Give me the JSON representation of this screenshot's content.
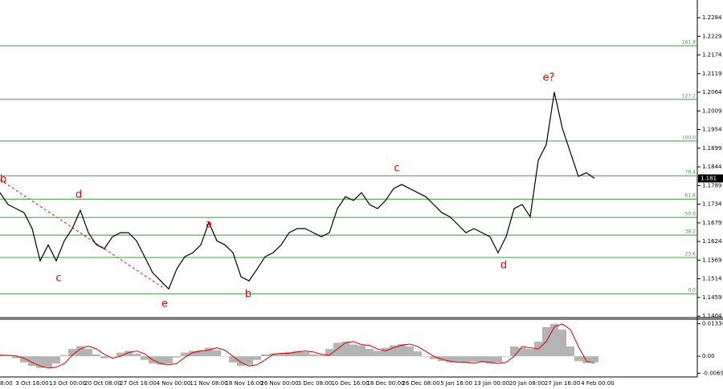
{
  "chart_data": [
    {
      "type": "line",
      "color": "#000000",
      "values": [
        1.1768,
        1.1733,
        1.1721,
        1.1709,
        1.1662,
        1.1567,
        1.1614,
        1.1567,
        1.1626,
        1.1662,
        1.1716,
        1.165,
        1.1614,
        1.1603,
        1.1638,
        1.165,
        1.165,
        1.1626,
        1.1579,
        1.1532,
        1.1508,
        1.1484,
        1.1543,
        1.1579,
        1.1591,
        1.1614,
        1.168,
        1.1626,
        1.1614,
        1.1591,
        1.152,
        1.1508,
        1.1543,
        1.1579,
        1.1591,
        1.1614,
        1.165,
        1.1662,
        1.1662,
        1.165,
        1.1638,
        1.165,
        1.1721,
        1.1756,
        1.1745,
        1.1768,
        1.1733,
        1.1721,
        1.1745,
        1.178,
        1.1792,
        1.178,
        1.1768,
        1.1756,
        1.1733,
        1.1709,
        1.1697,
        1.1674,
        1.165,
        1.1662,
        1.165,
        1.1638,
        1.1591,
        1.1638,
        1.1721,
        1.1733,
        1.1697,
        1.1863,
        1.191,
        1.2064,
        1.1958,
        1.1887,
        1.1816,
        1.1827,
        1.181
      ],
      "ylim": [
        1.1402,
        1.2336
      ],
      "yticks": [
        1.2284,
        1.2229,
        1.2174,
        1.2119,
        1.2064,
        1.2009,
        1.1954,
        1.1899,
        1.1844,
        1.1789,
        1.1734,
        1.1679,
        1.1624,
        1.1569,
        1.1514,
        1.1459,
        1.1404
      ],
      "last_price": 1.181,
      "fib_color": "#3c9a3c",
      "fib_levels": [
        {
          "ratio": "161.8",
          "price": 1.2201
        },
        {
          "ratio": "127.2",
          "price": 1.2043
        },
        {
          "ratio": "100.0",
          "price": 1.192
        },
        {
          "ratio": "76.4",
          "price": 1.1818
        },
        {
          "ratio": "61.8",
          "price": 1.1749
        },
        {
          "ratio": "50.0",
          "price": 1.1695
        },
        {
          "ratio": "38.2",
          "price": 1.1643
        },
        {
          "ratio": "23.6",
          "price": 1.1577
        },
        {
          "ratio": "0.0",
          "price": 1.147
        }
      ],
      "annotations": [
        "b",
        "d",
        "c",
        "e",
        "a",
        "b",
        "c",
        "d",
        "e?"
      ],
      "xtick_labels": [
        "8:00",
        "3 Oct 16:00",
        "13 Oct 00:00",
        "20 Oct 08:00",
        "27 Oct 16:00",
        "4 Nov 00:00",
        "11 Nov 08:00",
        "18 Nov 16:00",
        "26 Nov 00:00",
        "3 Dec 08:00",
        "10 Dec 16:00",
        "18 Dec 00:00",
        "26 Dec 08:00",
        "5 Jan 16:00",
        "13 Jan 00:00",
        "20 Jan 08:00",
        "27 Jan 16:00",
        "4 Feb 00:00"
      ]
    },
    {
      "type": "bar",
      "color": "#b4b4b4",
      "signal_color": "#e00000",
      "values": [
        0.0004,
        0.0002,
        -0.0008,
        -0.0025,
        -0.004,
        -0.0048,
        -0.0045,
        -0.003,
        0.0005,
        0.003,
        0.0042,
        0.003,
        0.0008,
        -0.0008,
        0.0,
        0.0015,
        0.0022,
        0.001,
        -0.0015,
        -0.003,
        -0.0035,
        -0.003,
        -0.0005,
        0.0015,
        0.0022,
        0.0025,
        0.0035,
        0.0025,
        0.0,
        -0.0025,
        -0.004,
        -0.0035,
        -0.0015,
        0.0008,
        0.0012,
        0.0012,
        0.0018,
        0.0022,
        0.0018,
        0.0008,
        0.0005,
        0.003,
        0.0055,
        0.006,
        0.0048,
        0.0045,
        0.003,
        0.0022,
        0.0035,
        0.0045,
        0.005,
        0.004,
        0.002,
        0.0,
        -0.0012,
        -0.002,
        -0.0025,
        -0.0025,
        -0.0028,
        -0.0022,
        -0.0025,
        -0.003,
        -0.0025,
        0.0,
        0.004,
        0.0035,
        0.003,
        0.006,
        0.012,
        0.0133,
        0.011,
        0.004,
        -0.002,
        -0.0028,
        -0.0025
      ],
      "signal": [
        0.0005,
        0.0004,
        0.0002,
        -0.0008,
        -0.0025,
        -0.004,
        -0.0048,
        -0.0045,
        -0.003,
        0.0005,
        0.003,
        0.0042,
        0.003,
        0.0008,
        -0.0008,
        0.0,
        0.0015,
        0.0022,
        0.001,
        -0.0015,
        -0.003,
        -0.0035,
        -0.003,
        -0.0005,
        0.0015,
        0.0022,
        0.0025,
        0.0035,
        0.0025,
        0.0,
        -0.0025,
        -0.004,
        -0.0035,
        -0.0015,
        0.0008,
        0.0012,
        0.0012,
        0.0018,
        0.0022,
        0.0018,
        0.0008,
        0.0005,
        0.003,
        0.0055,
        0.006,
        0.0048,
        0.0045,
        0.003,
        0.0022,
        0.0035,
        0.0045,
        0.005,
        0.004,
        0.002,
        0.0,
        -0.0012,
        -0.002,
        -0.0025,
        -0.0025,
        -0.0028,
        -0.0022,
        -0.0025,
        -0.003,
        -0.0025,
        0.0,
        0.004,
        0.0035,
        0.003,
        0.006,
        0.012,
        0.0133,
        0.011,
        0.004,
        -0.002,
        -0.0028
      ],
      "ylim": [
        -0.0085,
        0.0152
      ],
      "yticks": [
        0.01334,
        {
          "value": 0,
          "label": "0.00"
        },
        -0.00695
      ]
    }
  ]
}
